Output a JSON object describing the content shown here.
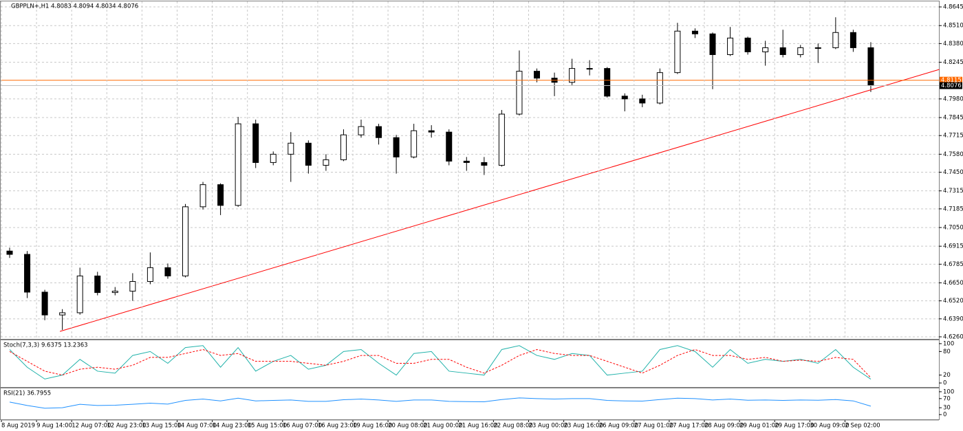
{
  "chart_data": [
    {
      "type": "candlestick",
      "title": "GBPPLN+,H1  4.8083 4.8094 4.8034 4.8076",
      "categories": [
        "8 Aug 2019",
        null,
        "9 Aug 14:00",
        null,
        "12 Aug 07:00",
        null,
        "12 Aug 23:00",
        null,
        "13 Aug 15:00",
        null,
        "14 Aug 07:00",
        null,
        "14 Aug 23:00",
        null,
        "15 Aug 15:00",
        null,
        "16 Aug 07:00",
        null,
        "16 Aug 23:00",
        null,
        "19 Aug 16:00",
        null,
        "20 Aug 08:00",
        null,
        "21 Aug 00:00",
        null,
        "21 Aug 16:00",
        null,
        "22 Aug 08:00",
        null,
        "23 Aug 00:00",
        null,
        "23 Aug 16:00",
        null,
        "26 Aug 09:00",
        null,
        "27 Aug 01:00",
        null,
        "27 Aug 17:00",
        null,
        "28 Aug 09:00",
        null,
        "29 Aug 01:00",
        null,
        "29 Aug 17:00",
        null,
        "30 Aug 09:00",
        null,
        "2 Sep 02:00",
        null
      ],
      "open": [
        4.688,
        4.6856,
        4.6583,
        4.6418,
        4.6434,
        4.67,
        4.658,
        4.659,
        4.666,
        4.676,
        4.67,
        4.72,
        4.736,
        4.721,
        4.78,
        4.752,
        4.758,
        4.766,
        4.75,
        4.754,
        4.772,
        4.778,
        4.77,
        4.756,
        4.775,
        4.774,
        4.753,
        4.752,
        4.75,
        4.787,
        4.818,
        4.813,
        4.81,
        4.82,
        4.82,
        4.8,
        4.798,
        4.795,
        4.817,
        4.847,
        4.845,
        4.83,
        4.842,
        4.832,
        4.835,
        4.83,
        4.835,
        4.835,
        4.846,
        4.835
      ],
      "high": [
        4.6905,
        4.688,
        4.66,
        4.646,
        4.676,
        4.673,
        4.662,
        4.672,
        4.687,
        4.679,
        4.722,
        4.738,
        4.737,
        4.785,
        4.783,
        4.76,
        4.774,
        4.768,
        4.758,
        4.776,
        4.783,
        4.78,
        4.772,
        4.78,
        4.779,
        4.776,
        4.756,
        4.756,
        4.79,
        4.833,
        4.82,
        4.817,
        4.827,
        4.826,
        4.821,
        4.802,
        4.801,
        4.82,
        4.853,
        4.849,
        4.846,
        4.85,
        4.843,
        4.84,
        4.848,
        4.837,
        4.838,
        4.857,
        4.848,
        4.839
      ],
      "low": [
        4.683,
        4.654,
        4.638,
        4.631,
        4.642,
        4.656,
        4.656,
        4.652,
        4.664,
        4.668,
        4.669,
        4.718,
        4.714,
        4.72,
        4.748,
        4.75,
        4.738,
        4.744,
        4.746,
        4.753,
        4.77,
        4.765,
        4.744,
        4.755,
        4.77,
        4.75,
        4.746,
        4.743,
        4.749,
        4.786,
        4.81,
        4.8,
        4.808,
        4.815,
        4.799,
        4.789,
        4.792,
        4.794,
        4.816,
        4.842,
        4.805,
        4.829,
        4.83,
        4.822,
        4.828,
        4.828,
        4.824,
        4.834,
        4.832,
        4.803
      ],
      "close": [
        4.6856,
        4.6583,
        4.6418,
        4.6434,
        4.67,
        4.658,
        4.659,
        4.666,
        4.676,
        4.67,
        4.72,
        4.736,
        4.721,
        4.78,
        4.752,
        4.758,
        4.766,
        4.75,
        4.754,
        4.772,
        4.778,
        4.77,
        4.756,
        4.775,
        4.774,
        4.753,
        4.752,
        4.75,
        4.787,
        4.818,
        4.813,
        4.81,
        4.82,
        4.82,
        4.8,
        4.798,
        4.795,
        4.817,
        4.847,
        4.845,
        4.83,
        4.842,
        4.832,
        4.835,
        4.83,
        4.835,
        4.835,
        4.846,
        4.835,
        4.8076
      ],
      "up_color": "#ffffff",
      "down_color": "#000000",
      "outline_color": "#000000",
      "ylim": [
        4.6245,
        4.8685
      ],
      "yticks": [
        {
          "value": 4.8645,
          "label": "4.8645"
        },
        {
          "value": 4.851,
          "label": "4.8510"
        },
        {
          "value": 4.838,
          "label": "4.8380"
        },
        {
          "value": 4.8245,
          "label": "4.8245"
        },
        {
          "value": 4.798,
          "label": "4.7980"
        },
        {
          "value": 4.7845,
          "label": "4.7845"
        },
        {
          "value": 4.7715,
          "label": "4.7715"
        },
        {
          "value": 4.758,
          "label": "4.7580"
        },
        {
          "value": 4.745,
          "label": "4.7450"
        },
        {
          "value": 4.7315,
          "label": "4.7315"
        },
        {
          "value": 4.7185,
          "label": "4.7185"
        },
        {
          "value": 4.705,
          "label": "4.7050"
        },
        {
          "value": 4.6915,
          "label": "4.6915"
        },
        {
          "value": 4.6785,
          "label": "4.6785"
        },
        {
          "value": 4.665,
          "label": "4.6650"
        },
        {
          "value": 4.652,
          "label": "4.6520"
        },
        {
          "value": 4.639,
          "label": "4.6390"
        },
        {
          "value": 4.626,
          "label": "4.6260"
        }
      ],
      "grid": true,
      "levels": [
        {
          "value": 4.8115,
          "line_color": "#ff6a00",
          "box_color": "#ff6a00"
        },
        {
          "value": 4.8076,
          "line_color": "#c0c0c0",
          "box_color": "#000000"
        }
      ],
      "trendline": {
        "x": [
          2.86,
          52.9
        ],
        "y": [
          4.6299,
          4.8193
        ],
        "color": "#ff0000"
      }
    },
    {
      "type": "line",
      "title": "Stoch(7,3,3) 9.6375 13.2363",
      "series": [
        {
          "color": "#20b2aa",
          "dashed": false,
          "values": [
            85,
            40,
            10,
            20,
            60,
            30,
            25,
            70,
            80,
            50,
            90,
            95,
            40,
            90,
            30,
            55,
            70,
            35,
            45,
            80,
            85,
            50,
            20,
            75,
            80,
            30,
            25,
            20,
            85,
            95,
            70,
            60,
            75,
            70,
            20,
            25,
            30,
            85,
            95,
            80,
            40,
            85,
            50,
            60,
            55,
            60,
            50,
            85,
            40,
            9.6375
          ]
        },
        {
          "color": "#ff0000",
          "dashed": true,
          "values": [
            80,
            55,
            30,
            20,
            35,
            40,
            35,
            45,
            65,
            65,
            75,
            85,
            70,
            75,
            55,
            55,
            55,
            50,
            45,
            55,
            70,
            70,
            50,
            50,
            60,
            60,
            40,
            25,
            45,
            70,
            85,
            75,
            70,
            70,
            55,
            40,
            25,
            45,
            70,
            85,
            70,
            70,
            60,
            65,
            55,
            58,
            55,
            65,
            60,
            13.2363
          ]
        }
      ],
      "ylim": [
        -10.3,
        108.6
      ],
      "yticks": [
        100,
        80,
        20,
        0
      ],
      "grid": false
    },
    {
      "type": "line",
      "title": "RSI(21) 36.7955",
      "series": [
        {
          "color": "#1e90ff",
          "dashed": false,
          "values": [
            55,
            40,
            28,
            30,
            45,
            40,
            41,
            45,
            50,
            46,
            62,
            68,
            60,
            72,
            60,
            62,
            64,
            58,
            58,
            65,
            68,
            64,
            58,
            64,
            64,
            58,
            57,
            56,
            66,
            73,
            70,
            68,
            70,
            70,
            62,
            60,
            59,
            66,
            72,
            70,
            64,
            68,
            63,
            64,
            62,
            64,
            63,
            66,
            60,
            36.7955
          ]
        }
      ],
      "ylim": [
        -20.6,
        114.7
      ],
      "yticks": [
        100,
        70,
        30,
        0
      ],
      "grid": false
    }
  ]
}
